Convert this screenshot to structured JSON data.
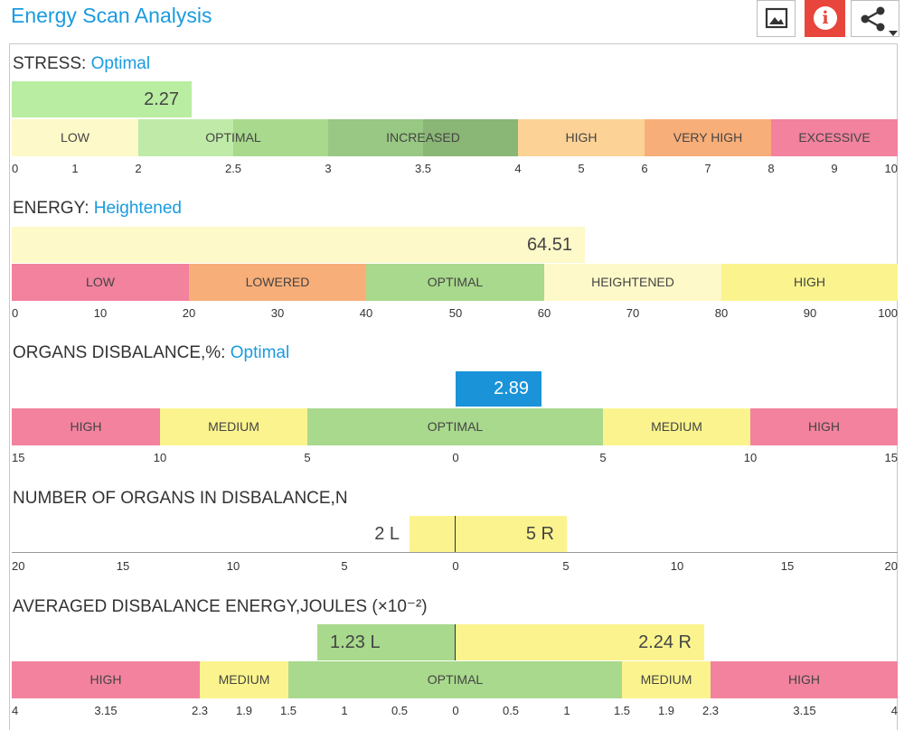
{
  "header": {
    "title": "Energy Scan Analysis",
    "buttons": [
      {
        "name": "image-button",
        "icon": "image-icon"
      },
      {
        "name": "info-button",
        "icon": "info-icon",
        "label": "i"
      },
      {
        "name": "share-button",
        "icon": "share-icon"
      }
    ]
  },
  "colors": {
    "pink": "#f2829e",
    "orange": "#f8ae78",
    "peach": "#fdd296",
    "green": "#a8d98c",
    "dark_green": "#8fbd7a",
    "cream": "#fdf9c8",
    "yellow": "#fbf48e",
    "blue": "#1a93d8",
    "value_green": "#b9eda1",
    "accent": "#1a9be0",
    "info_red": "#e8453c"
  },
  "stress": {
    "label": "STRESS:",
    "status": "Optimal",
    "value": "2.27",
    "segments": [
      "LOW",
      "OPTIMAL",
      "INCREASED",
      "HIGH",
      "VERY HIGH",
      "EXCESSIVE"
    ],
    "ticks": [
      "0",
      "1",
      "2",
      "2.5",
      "3",
      "3.5",
      "4",
      "5",
      "6",
      "7",
      "8",
      "9",
      "10"
    ]
  },
  "energy": {
    "label": "ENERGY:",
    "status": "Heightened",
    "value": "64.51",
    "segments": [
      "LOW",
      "LOWERED",
      "OPTIMAL",
      "HEIGHTENED",
      "HIGH"
    ],
    "ticks": [
      "0",
      "10",
      "20",
      "30",
      "40",
      "50",
      "60",
      "70",
      "80",
      "90",
      "100"
    ]
  },
  "organs_disbalance": {
    "label": "ORGANS DISBALANCE,%:",
    "status": "Optimal",
    "value": "2.89",
    "segments": [
      "HIGH",
      "MEDIUM",
      "OPTIMAL",
      "MEDIUM",
      "HIGH"
    ],
    "ticks": [
      "15",
      "10",
      "5",
      "0",
      "5",
      "10",
      "15"
    ]
  },
  "organs_count": {
    "label": "NUMBER OF ORGANS IN DISBALANCE,N",
    "left_value": "2 L",
    "right_value": "5 R",
    "ticks": [
      "20",
      "15",
      "10",
      "5",
      "0",
      "5",
      "10",
      "15",
      "20"
    ]
  },
  "disbalance_energy": {
    "label": "AVERAGED DISBALANCE ENERGY,JOULES (×10⁻²)",
    "left_value": "1.23 L",
    "right_value": "2.24 R",
    "segments": [
      "HIGH",
      "MEDIUM",
      "OPTIMAL",
      "MEDIUM",
      "HIGH"
    ],
    "ticks": [
      "4",
      "3.15",
      "2.3",
      "1.9",
      "1.5",
      "1",
      "0.5",
      "0",
      "0.5",
      "1",
      "1.5",
      "1.9",
      "2.3",
      "3.15",
      "4"
    ]
  }
}
